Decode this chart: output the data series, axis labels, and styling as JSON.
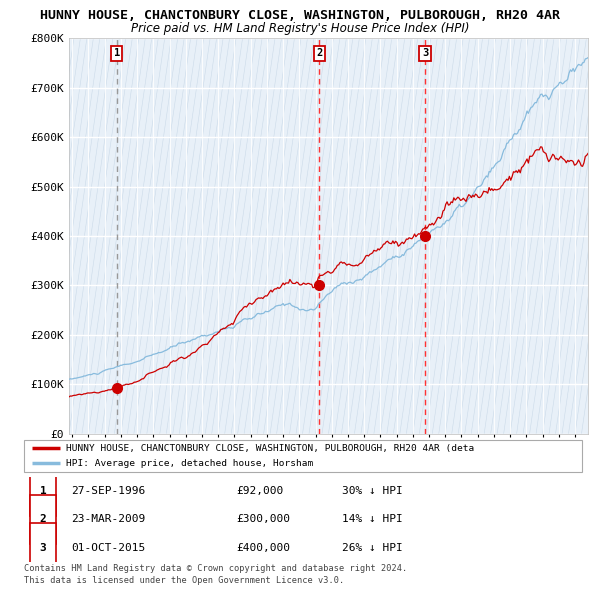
{
  "title": "HUNNY HOUSE, CHANCTONBURY CLOSE, WASHINGTON, PULBOROUGH, RH20 4AR",
  "subtitle": "Price paid vs. HM Land Registry's House Price Index (HPI)",
  "plot_bg_color": "#e8f0f8",
  "hatch_color": "#c8d8e8",
  "ylim": [
    0,
    800000
  ],
  "yticks": [
    0,
    100000,
    200000,
    300000,
    400000,
    500000,
    600000,
    700000,
    800000
  ],
  "sales": [
    {
      "date_num": 1996.74,
      "price": 92000,
      "label": "1"
    },
    {
      "date_num": 2009.23,
      "price": 300000,
      "label": "2"
    },
    {
      "date_num": 2015.75,
      "price": 400000,
      "label": "3"
    }
  ],
  "vline_dates": [
    1996.74,
    2009.23,
    2015.75
  ],
  "legend_label_red": "HUNNY HOUSE, CHANCTONBURY CLOSE, WASHINGTON, PULBOROUGH, RH20 4AR (deta",
  "legend_label_blue": "HPI: Average price, detached house, Horsham",
  "table_data": [
    {
      "num": "1",
      "date": "27-SEP-1996",
      "price": "£92,000",
      "hpi": "30% ↓ HPI"
    },
    {
      "num": "2",
      "date": "23-MAR-2009",
      "price": "£300,000",
      "hpi": "14% ↓ HPI"
    },
    {
      "num": "3",
      "date": "01-OCT-2015",
      "price": "£400,000",
      "hpi": "26% ↓ HPI"
    }
  ],
  "footnote1": "Contains HM Land Registry data © Crown copyright and database right 2024.",
  "footnote2": "This data is licensed under the Open Government Licence v3.0.",
  "red_line_color": "#cc0000",
  "blue_line_color": "#88bbdd",
  "dot_color": "#cc0000",
  "xstart": 1993.8,
  "xend": 2025.8
}
